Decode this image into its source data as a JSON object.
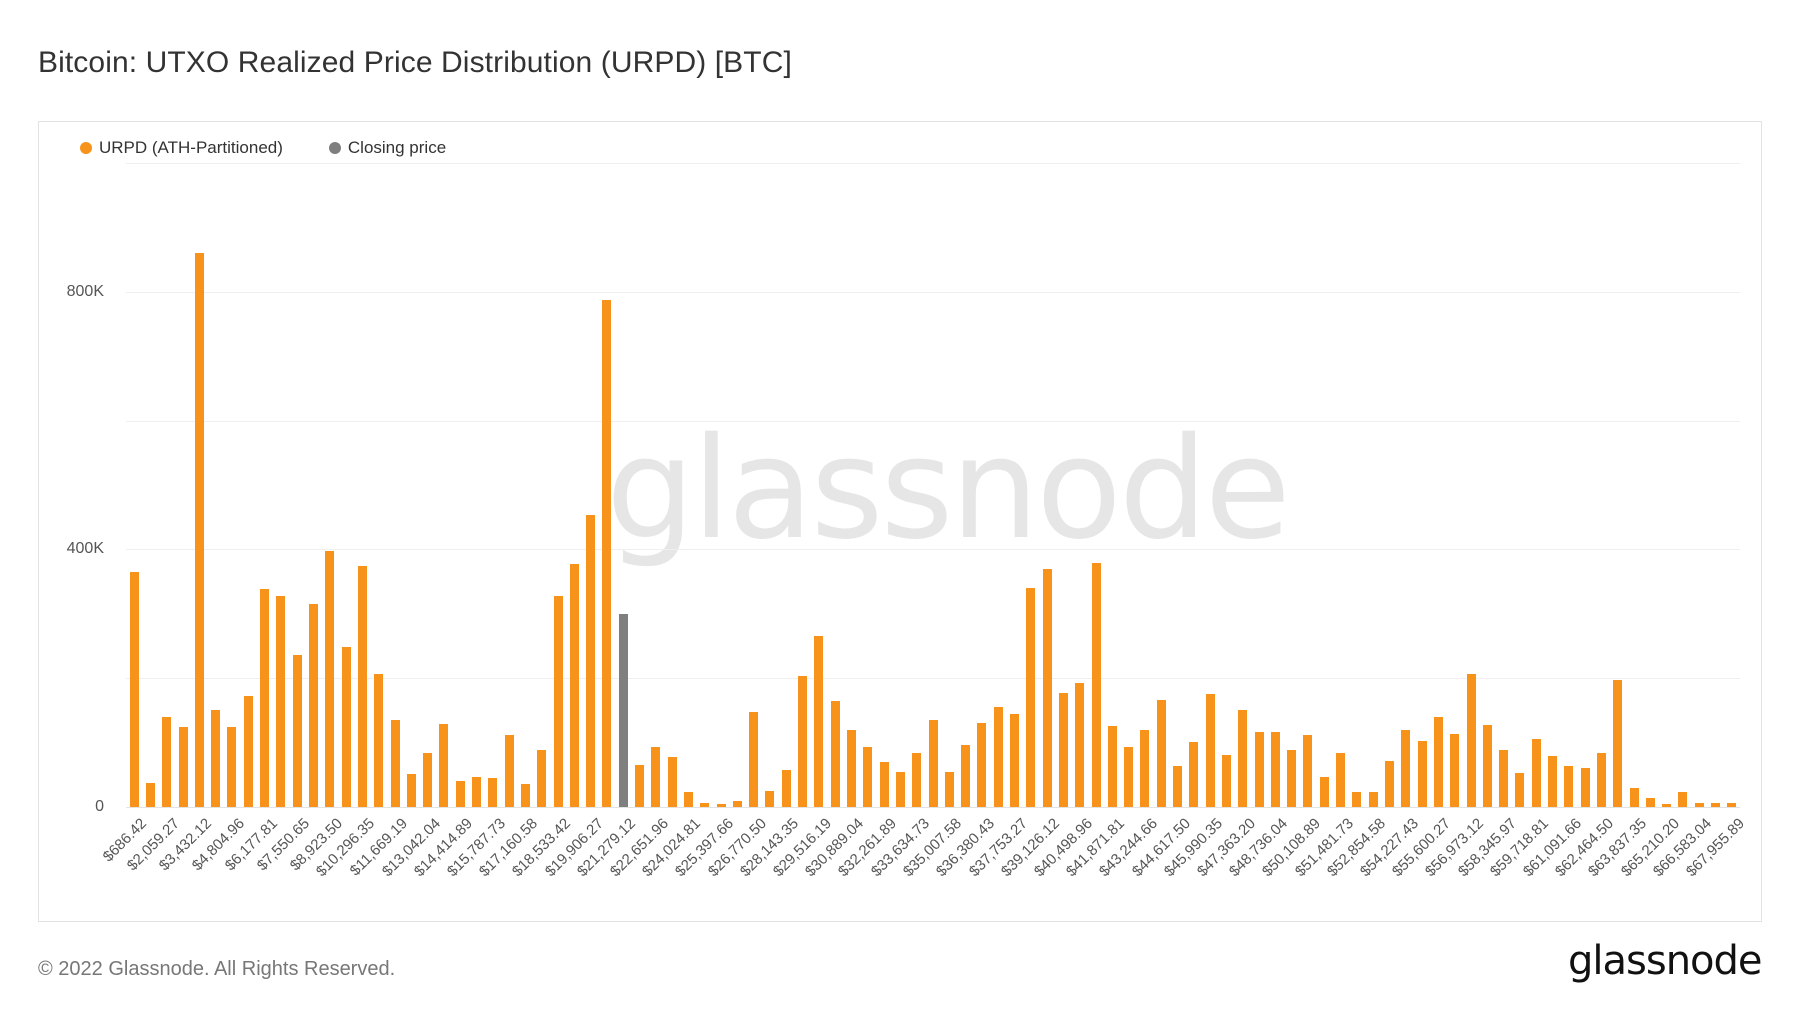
{
  "title": "Bitcoin: UTXO Realized Price Distribution (URPD) [BTC]",
  "legend": [
    {
      "label": "URPD (ATH-Partitioned)",
      "color": "#f7931a"
    },
    {
      "label": "Closing price",
      "color": "#7f7f7f"
    }
  ],
  "watermark": "glassnode",
  "footer": {
    "copyright": "© 2022 Glassnode. All Rights Reserved.",
    "logo": "glassnode"
  },
  "y_axis": {
    "ticks": [
      {
        "value": 0,
        "label": "0"
      },
      {
        "value": 400000,
        "label": "400K"
      },
      {
        "value": 800000,
        "label": "800K"
      }
    ],
    "gridlines": [
      0,
      200000,
      400000,
      600000,
      800000,
      1000000
    ]
  },
  "chart_data": {
    "type": "bar",
    "title": "Bitcoin: UTXO Realized Price Distribution (URPD) [BTC]",
    "xlabel": "",
    "ylabel": "",
    "ylim": [
      0,
      1000000
    ],
    "grid": true,
    "legend_position": "top-left",
    "bin_step": 686.42,
    "closing_price_index": 30,
    "x_tick_labels": [
      "$686.42",
      "$2,059.27",
      "$3,432.12",
      "$4,804.96",
      "$6,177.81",
      "$7,550.65",
      "$8,923.50",
      "$10,296.35",
      "$11,669.19",
      "$13,042.04",
      "$14,414.89",
      "$15,787.73",
      "$17,160.58",
      "$18,533.42",
      "$19,906.27",
      "$21,279.12",
      "$22,651.96",
      "$24,024.81",
      "$25,397.66",
      "$26,770.50",
      "$28,143.35",
      "$29,516.19",
      "$30,889.04",
      "$32,261.89",
      "$33,634.73",
      "$35,007.58",
      "$36,380.43",
      "$37,753.27",
      "$39,126.12",
      "$40,498.96",
      "$41,871.81",
      "$43,244.66",
      "$44,617.50",
      "$45,990.35",
      "$47,363.20",
      "$48,736.04",
      "$50,108.89",
      "$51,481.73",
      "$52,854.58",
      "$54,227.43",
      "$55,600.27",
      "$56,973.12",
      "$58,345.97",
      "$59,718.81",
      "$61,091.66",
      "$62,464.50",
      "$63,837.35",
      "$65,210.20",
      "$66,583.04",
      "$67,955.89"
    ],
    "series": [
      {
        "name": "URPD (ATH-Partitioned)",
        "color": "#f7931a",
        "values": [
          365000,
          37000,
          140000,
          124000,
          860000,
          150000,
          124000,
          173000,
          338000,
          328000,
          236000,
          316000,
          398000,
          248000,
          375000,
          206000,
          135000,
          51000,
          84000,
          129000,
          40000,
          47000,
          45000,
          112000,
          35000,
          89000,
          328000,
          377000,
          454000,
          787000,
          299000,
          65000,
          93000,
          77000,
          23000,
          7000,
          4000,
          9000,
          147000,
          25000,
          58000,
          203000,
          266000,
          164000,
          119000,
          93000,
          70000,
          55000,
          84000,
          135000,
          55000,
          96000,
          131000,
          156000,
          145000,
          340000,
          370000,
          177000,
          192000,
          379000,
          126000,
          93000,
          119000,
          166000,
          63000,
          101000,
          175000,
          81000,
          151000,
          117000,
          117000,
          88000,
          112000,
          46000,
          84000,
          23000,
          23000,
          72000,
          119000,
          103000,
          140000,
          114000,
          206000,
          128000,
          88000,
          53000,
          105000,
          79000,
          63000,
          61000,
          84000,
          197000,
          30000,
          14000,
          4000,
          23000,
          7000,
          7000,
          7000
        ]
      },
      {
        "name": "Closing price",
        "color": "#7f7f7f",
        "bar_index": 30,
        "price": "$21,279.12",
        "value": 299000
      }
    ]
  }
}
